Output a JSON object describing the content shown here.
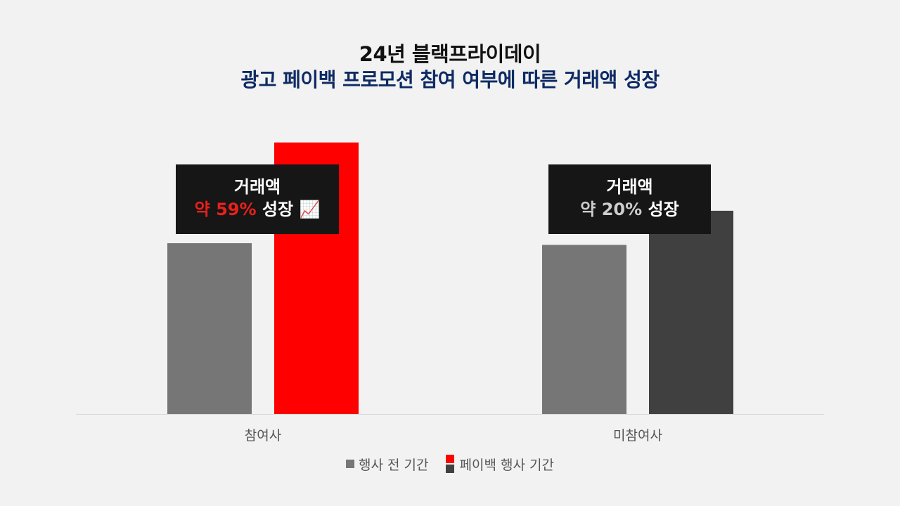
{
  "title_line1": "24년 블랙프라이데이",
  "title_line2": "광고 페이백 프로모션 참여 여부에 따른 거래액 성장",
  "colors": {
    "before": "#767676",
    "payback_participant": "#ff0000",
    "payback_nonparticipant": "#404040",
    "title_accent": "#0d2a63",
    "annotation_bg": "#161616",
    "annotation_highlight_participant": "#e8201a",
    "annotation_highlight_nonparticipant": "#cccccc"
  },
  "annotations": [
    {
      "line1": "거래액",
      "highlight": "약 59%",
      "suffix": "성장",
      "icon": "chart-increasing-icon",
      "icon_glyph": "📈"
    },
    {
      "line1": "거래액",
      "highlight": "약 20%",
      "suffix": "성장"
    }
  ],
  "chart_data": {
    "type": "bar",
    "categories": [
      "참여사",
      "미참여사"
    ],
    "series": [
      {
        "name": "행사 전 기간",
        "values": [
          100,
          99
        ]
      },
      {
        "name": "페이백 행사 기간",
        "values": [
          159,
          119
        ]
      }
    ],
    "ylim": [
      0,
      170
    ],
    "grid": false,
    "axis_visible": false,
    "legend_position": "bottom",
    "xlabel": "",
    "ylabel": ""
  }
}
